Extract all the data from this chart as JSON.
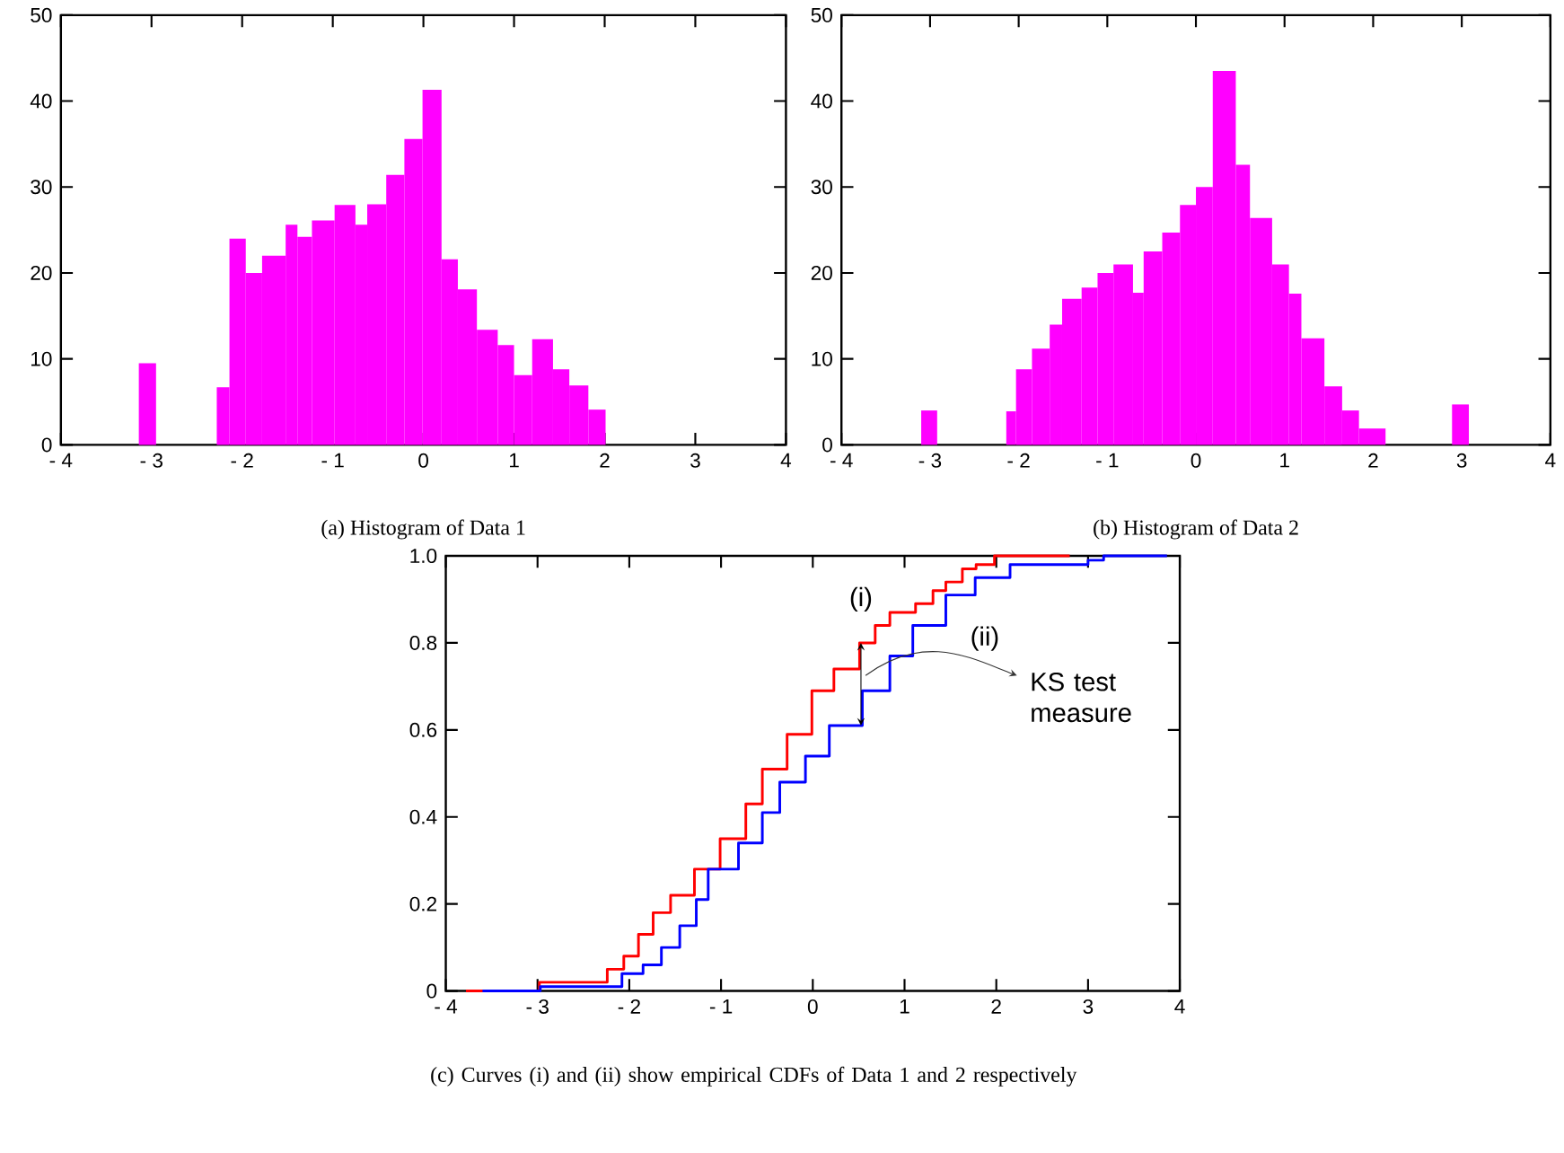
{
  "chart_data": [
    {
      "type": "histogram",
      "title": "(a) Histogram of Data 1",
      "color": "#ff00ff",
      "bins": [
        -3.14,
        -2.95,
        -2.28,
        -2.14,
        -1.96,
        -1.78,
        -1.52,
        -1.39,
        -1.23,
        -0.98,
        -0.75,
        -0.62,
        -0.41,
        -0.21,
        -0.01,
        0.2,
        0.38,
        0.59,
        0.82,
        1.0,
        1.2,
        1.43,
        1.61,
        1.82,
        2.01
      ],
      "values": [
        9.5,
        0,
        6.7,
        24,
        20,
        22,
        25.6,
        24.2,
        26.1,
        27.9,
        25.6,
        28,
        31.4,
        35.6,
        41.3,
        21.6,
        18.1,
        13.4,
        11.6,
        8.1,
        12.3,
        8.8,
        6.9,
        4.1
      ],
      "xlim": [
        -4,
        4
      ],
      "xticks": [
        {
          "value": -4,
          "label": "- 4"
        },
        {
          "value": -3,
          "label": "- 3"
        },
        {
          "value": -2,
          "label": "- 2"
        },
        {
          "value": -1,
          "label": "- 1"
        },
        0,
        1,
        2,
        3,
        4
      ],
      "ylim": [
        0,
        50
      ],
      "yticks": [
        0,
        10,
        20,
        30,
        40,
        50
      ]
    },
    {
      "type": "histogram",
      "title": "(b) Histogram of Data 2",
      "color": "#ff00ff",
      "bins": [
        -3.1,
        -2.92,
        -2.14,
        -2.03,
        -1.85,
        -1.65,
        -1.51,
        -1.29,
        -1.11,
        -0.93,
        -0.71,
        -0.59,
        -0.38,
        -0.18,
        0,
        0.19,
        0.45,
        0.61,
        0.86,
        1.05,
        1.19,
        1.45,
        1.65,
        1.84,
        2.14,
        2.89,
        3.08
      ],
      "values": [
        4,
        0,
        3.9,
        8.8,
        11.2,
        14,
        17,
        18.3,
        20,
        21,
        17.7,
        22.5,
        24.7,
        27.9,
        30,
        43.5,
        32.6,
        26.4,
        21,
        17.6,
        12.4,
        6.8,
        4,
        1.9,
        0,
        4.7
      ],
      "xlim": [
        -4,
        4
      ],
      "xticks": [
        {
          "value": -4,
          "label": "- 4"
        },
        {
          "value": -3,
          "label": "- 3"
        },
        {
          "value": -2,
          "label": "- 2"
        },
        {
          "value": -1,
          "label": "- 1"
        },
        0,
        1,
        2,
        3,
        4
      ],
      "ylim": [
        0,
        50
      ],
      "yticks": [
        0,
        10,
        20,
        30,
        40,
        50
      ]
    },
    {
      "type": "step",
      "title": "(c) Curves (i) and (ii) show empirical CDFs of Data 1 and 2 respectively",
      "series": [
        {
          "name": "(i)",
          "color": "#ff0000",
          "x": [
            -3.78,
            -2.98,
            -2.24,
            -2.06,
            -1.9,
            -1.74,
            -1.55,
            -1.29,
            -1.01,
            -0.73,
            -0.55,
            -0.28,
            -0.01,
            0.23,
            0.51,
            0.68,
            0.84,
            1.12,
            1.31,
            1.45,
            1.63,
            1.78,
            1.98,
            2.8
          ],
          "values": [
            0,
            0.02,
            0.05,
            0.08,
            0.13,
            0.18,
            0.22,
            0.28,
            0.35,
            0.43,
            0.51,
            0.59,
            0.69,
            0.74,
            0.8,
            0.84,
            0.87,
            0.89,
            0.92,
            0.94,
            0.97,
            0.98,
            1.0,
            1.0
          ]
        },
        {
          "name": "(ii)",
          "color": "#0000ff",
          "x": [
            -3.6,
            -2.97,
            -2.08,
            -1.85,
            -1.65,
            -1.45,
            -1.27,
            -1.14,
            -0.81,
            -0.55,
            -0.36,
            -0.08,
            0.18,
            0.54,
            0.84,
            1.09,
            1.45,
            1.77,
            2.15,
            3.0,
            3.17,
            3.86
          ],
          "values": [
            0,
            0.01,
            0.04,
            0.06,
            0.1,
            0.15,
            0.21,
            0.28,
            0.34,
            0.41,
            0.48,
            0.54,
            0.61,
            0.69,
            0.77,
            0.84,
            0.91,
            0.95,
            0.98,
            0.99,
            1.0,
            1.0
          ]
        }
      ],
      "xlim": [
        -4,
        4
      ],
      "xticks": [
        {
          "value": -4,
          "label": "- 4"
        },
        {
          "value": -3,
          "label": "- 3"
        },
        {
          "value": -2,
          "label": "- 2"
        },
        {
          "value": -1,
          "label": "- 1"
        },
        0,
        1,
        2,
        3,
        4
      ],
      "ylim": [
        0,
        1
      ],
      "yticks": [
        0,
        0.2,
        0.4,
        0.6,
        0.8,
        {
          "value": 1,
          "label": "1.0"
        }
      ],
      "annotations": [
        "KS test measure"
      ]
    }
  ]
}
